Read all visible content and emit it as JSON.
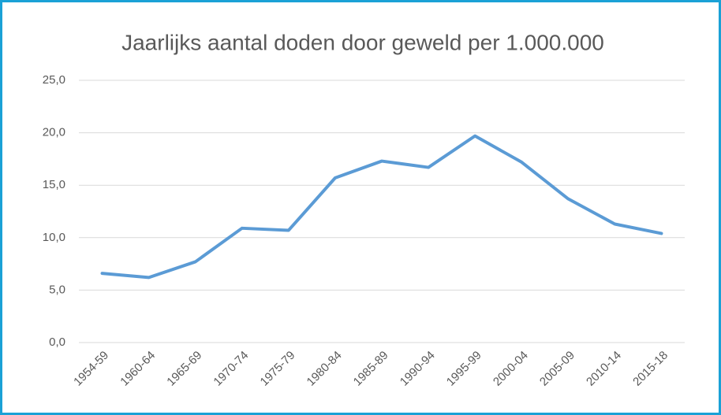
{
  "chart_data": {
    "type": "line",
    "title": "Jaarlijks aantal doden door geweld per 1.000.000",
    "categories": [
      "1954-59",
      "1960-64",
      "1965-69",
      "1970-74",
      "1975-79",
      "1980-84",
      "1985-89",
      "1990-94",
      "1995-99",
      "2000-04",
      "2005-09",
      "2010-14",
      "2015-18"
    ],
    "series": [
      {
        "color": "#5b9bd5",
        "values": [
          6.6,
          6.2,
          7.7,
          10.9,
          10.7,
          15.7,
          17.3,
          16.7,
          19.7,
          17.2,
          13.7,
          11.3,
          10.4
        ]
      }
    ],
    "ylim": [
      0,
      25
    ],
    "yticks": [
      {
        "value": 0,
        "label": "0,0"
      },
      {
        "value": 5,
        "label": "5,0"
      },
      {
        "value": 10,
        "label": "10,0"
      },
      {
        "value": 15,
        "label": "15,0"
      },
      {
        "value": 20,
        "label": "20,0"
      },
      {
        "value": 25,
        "label": "25,0"
      }
    ],
    "grid": true
  }
}
